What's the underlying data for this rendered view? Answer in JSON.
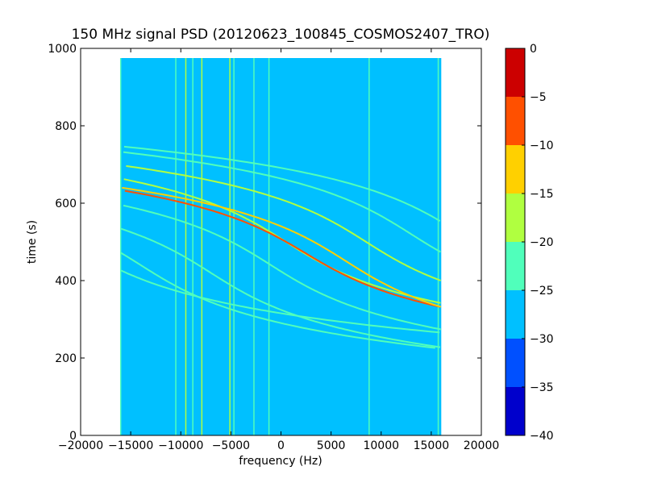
{
  "chart_data": {
    "type": "heatmap",
    "title": "150 MHz signal PSD (20120623_100845_COSMOS2407_TRO)",
    "xlabel": "frequency (Hz)",
    "ylabel": "time (s)",
    "xlim": [
      -20000,
      20000
    ],
    "ylim": [
      0,
      1000
    ],
    "x_ticks": [
      -20000,
      -15000,
      -10000,
      -5000,
      0,
      5000,
      10000,
      15000,
      20000
    ],
    "x_tick_labels": [
      "−20000",
      "−15000",
      "−10000",
      "−5000",
      "0",
      "5000",
      "10000",
      "15000",
      "20000"
    ],
    "y_ticks": [
      0,
      200,
      400,
      600,
      800,
      1000
    ],
    "y_tick_labels": [
      "0",
      "200",
      "400",
      "600",
      "800",
      "1000"
    ],
    "data_extent": {
      "x": [
        -16000,
        16000
      ],
      "y": [
        0,
        975
      ]
    },
    "background_level": -27.5,
    "colorbar": {
      "levels": [
        -40,
        -35,
        -30,
        -25,
        -20,
        -15,
        -10,
        -5,
        0
      ],
      "tick_labels": [
        "−40",
        "−35",
        "−30",
        "−25",
        "−20",
        "−15",
        "−10",
        "−5",
        "0"
      ],
      "colors": [
        "#0000cc",
        "#0050ff",
        "#00c0ff",
        "#50ffbb",
        "#b0ff40",
        "#ffd000",
        "#ff5000",
        "#cc0000"
      ]
    },
    "vertical_lines": [
      {
        "x": -16000,
        "level": -22.5
      },
      {
        "x": -10500,
        "level": -22.5
      },
      {
        "x": -9500,
        "level": -17.5
      },
      {
        "x": -8800,
        "level": -22.5
      },
      {
        "x": -7900,
        "level": -17.5
      },
      {
        "x": -5100,
        "level": -17.5
      },
      {
        "x": -4700,
        "level": -22.5
      },
      {
        "x": -2700,
        "level": -22.5
      },
      {
        "x": -1200,
        "level": -22.5
      },
      {
        "x": 8800,
        "level": -22.5
      },
      {
        "x": 15700,
        "level": -22.5
      }
    ],
    "doppler_tracks": [
      {
        "f0": -21000,
        "t0": 500,
        "a": 5500,
        "k": 90,
        "level": -22.5
      },
      {
        "f0": -14000,
        "t0": 440,
        "a": 5500,
        "k": 90,
        "level": -22.5
      },
      {
        "f0": -7000,
        "t0": 420,
        "a": 5500,
        "k": 90,
        "level": -22.5
      },
      {
        "f0": -1000,
        "t0": 440,
        "a": 5500,
        "k": 90,
        "level": -22.5
      },
      {
        "f0": 500,
        "t0": 500,
        "a": 5500,
        "k": 90,
        "level": -17.5
      },
      {
        "f0": 2500,
        "t0": 470,
        "a": 5500,
        "k": 85,
        "level": -7.5
      },
      {
        "f0": 6500,
        "t0": 450,
        "a": 5500,
        "k": 90,
        "level": -12.5
      },
      {
        "f0": 8500,
        "t0": 500,
        "a": 5500,
        "k": 90,
        "level": -17.5
      },
      {
        "f0": 13000,
        "t0": 520,
        "a": 5500,
        "k": 90,
        "level": -22.5
      },
      {
        "f0": 18000,
        "t0": 520,
        "a": 5500,
        "k": 90,
        "level": -22.5
      }
    ]
  }
}
